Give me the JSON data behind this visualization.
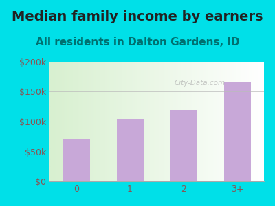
{
  "title": "Median family income by earners",
  "subtitle": "All residents in Dalton Gardens, ID",
  "categories": [
    "0",
    "1",
    "2",
    "3+"
  ],
  "values": [
    70000,
    103000,
    120000,
    165000
  ],
  "bar_color": "#c8a8d8",
  "ylim": [
    0,
    200000
  ],
  "yticks": [
    0,
    50000,
    100000,
    150000,
    200000
  ],
  "ytick_labels": [
    "$0",
    "$50k",
    "$100k",
    "$150k",
    "$200k"
  ],
  "title_fontsize": 14,
  "subtitle_fontsize": 11,
  "tick_fontsize": 9,
  "outer_bg": "#00e0e8",
  "plot_bg_left": "#d8f0d0",
  "plot_bg_right": "#ffffff",
  "title_color": "#222222",
  "subtitle_color": "#007070",
  "tick_color": "#885555",
  "watermark": "City-Data.com"
}
